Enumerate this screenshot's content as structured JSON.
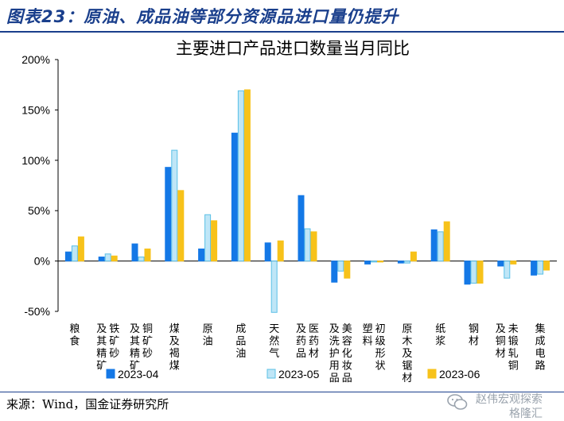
{
  "header": {
    "title": "图表23：原油、成品油等部分资源品进口量仍提升"
  },
  "footer": {
    "source": "来源：Wind，国金证券研究所",
    "watermark_line1": "赵伟宏观探索",
    "watermark_line2": "格隆汇"
  },
  "colors": {
    "accent": "#1a3f8c",
    "series": [
      "#1478e6",
      "#bfe6f7",
      "#f7c21a"
    ],
    "series_stroke": [
      "#1478e6",
      "#5bc0e6",
      "#f7c21a"
    ]
  },
  "chart_data": {
    "type": "bar",
    "title": "主要进口产品进口数量当月同比",
    "categories": [
      "粮食",
      "铁矿砂及其精矿",
      "铜矿砂及其精矿",
      "煤及褐煤",
      "原油",
      "成品油",
      "天然气",
      "医药材及药品",
      "美容化妆品及洗护用品",
      "初级形状塑料",
      "原木及锯材",
      "纸浆",
      "钢材",
      "未锻轧铜及铜材",
      "集成电路"
    ],
    "category_lines": [
      [
        "粮食"
      ],
      [
        "铁矿砂",
        "及其精矿"
      ],
      [
        "铜矿砂",
        "及其精矿"
      ],
      [
        "煤及褐煤"
      ],
      [
        "原油"
      ],
      [
        "成品油"
      ],
      [
        "天然气"
      ],
      [
        "医药材",
        "及药品"
      ],
      [
        "美容化妆品",
        "及洗护用品"
      ],
      [
        "初级形状",
        "塑料"
      ],
      [
        "原木及锯材"
      ],
      [
        "纸浆"
      ],
      [
        "钢材"
      ],
      [
        "未锻轧铜",
        "及铜材"
      ],
      [
        "集成电路"
      ]
    ],
    "series": [
      {
        "name": "2023-04",
        "values": [
          9,
          4,
          17,
          93,
          12,
          127,
          18,
          65,
          -21,
          -3,
          -2,
          31,
          -23,
          -5,
          -14
        ]
      },
      {
        "name": "2023-05",
        "values": [
          15,
          7,
          4,
          110,
          46,
          169,
          -51,
          32,
          -10,
          -1,
          -2,
          29,
          -22,
          -17,
          -13
        ]
      },
      {
        "name": "2023-06",
        "values": [
          24,
          5,
          12,
          70,
          40,
          170,
          20,
          29,
          -17,
          -1,
          9,
          39,
          -22,
          -3,
          -9
        ]
      }
    ],
    "ylim": [
      -50,
      200
    ],
    "yticks": [
      -50,
      0,
      50,
      100,
      150,
      200
    ],
    "ytick_labels": [
      "-50%",
      "0%",
      "50%",
      "100%",
      "150%",
      "200%"
    ],
    "grid": false,
    "legend_position": "bottom"
  }
}
